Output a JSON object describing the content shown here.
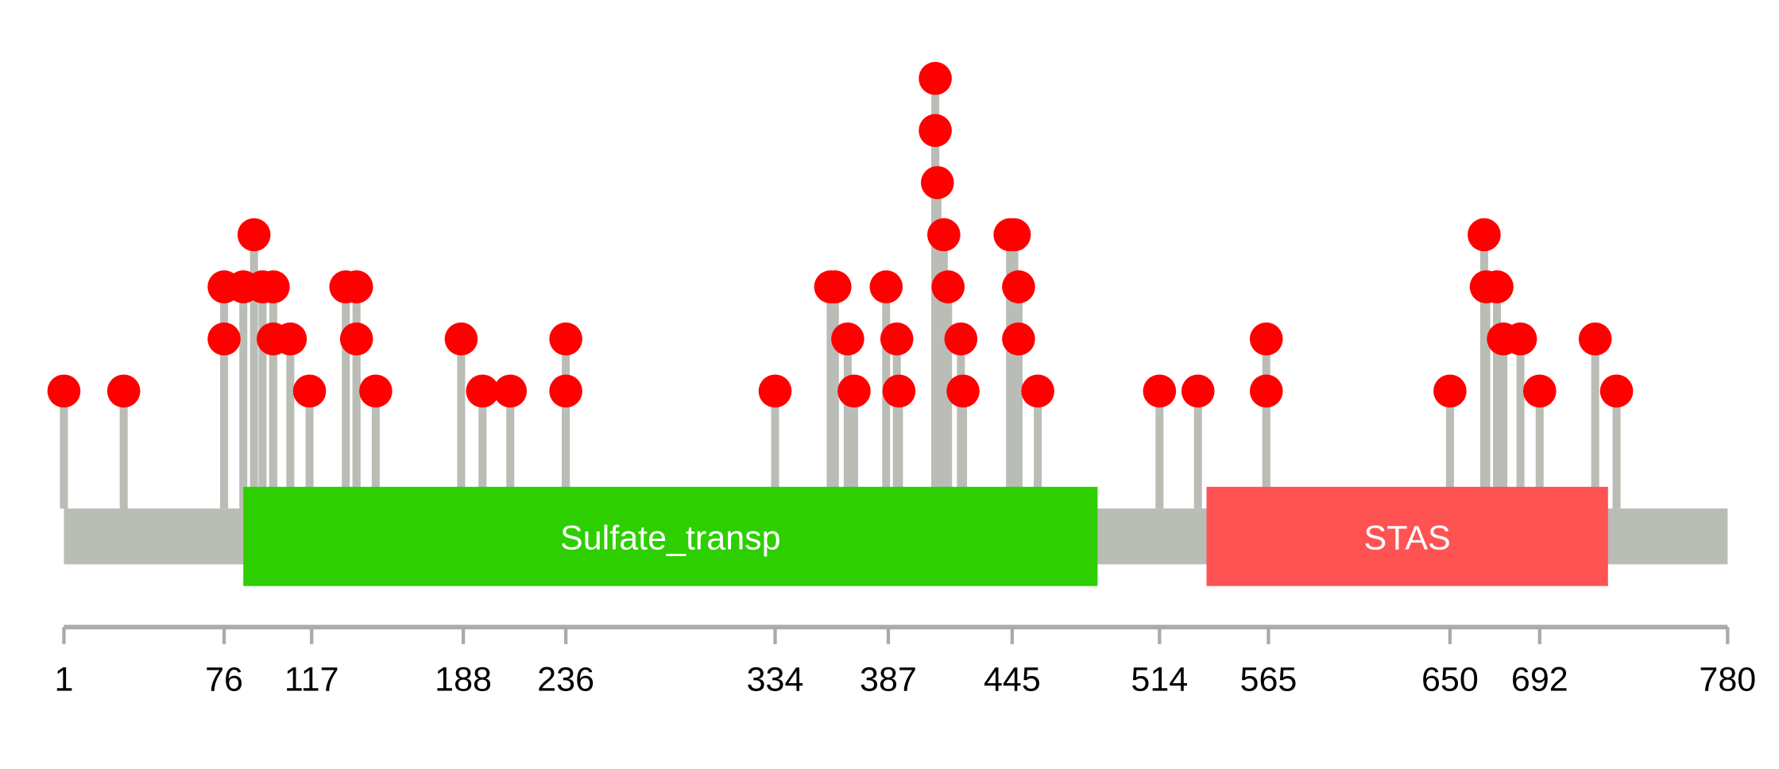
{
  "chart_data": {
    "type": "lollipop",
    "title": "",
    "xlabel": "",
    "ylabel": "",
    "protein_length": 780,
    "xlim": [
      1,
      780
    ],
    "max_count": 7,
    "colors": {
      "backbone": "#babdb6",
      "stem": "#babdb6",
      "marker": "#ff0000",
      "axis": "#aaaaaa"
    },
    "domains": [
      {
        "name": "Sulfate_transp",
        "start": 85,
        "end": 485,
        "color": "#2ecf00"
      },
      {
        "name": "STAS",
        "start": 536,
        "end": 724,
        "color": "#ff5353"
      }
    ],
    "tick_labels": [
      1,
      76,
      117,
      188,
      236,
      334,
      387,
      445,
      514,
      565,
      650,
      692,
      780
    ],
    "mutations": [
      {
        "position": 1,
        "count": 1
      },
      {
        "position": 29,
        "count": 1
      },
      {
        "position": 76,
        "count": 3
      },
      {
        "position": 76,
        "count": 2
      },
      {
        "position": 85,
        "count": 3
      },
      {
        "position": 90,
        "count": 4
      },
      {
        "position": 94,
        "count": 3
      },
      {
        "position": 99,
        "count": 3
      },
      {
        "position": 99,
        "count": 2
      },
      {
        "position": 107,
        "count": 2
      },
      {
        "position": 116,
        "count": 1
      },
      {
        "position": 133,
        "count": 3
      },
      {
        "position": 138,
        "count": 3
      },
      {
        "position": 138,
        "count": 2
      },
      {
        "position": 147,
        "count": 1
      },
      {
        "position": 187,
        "count": 2
      },
      {
        "position": 197,
        "count": 1
      },
      {
        "position": 210,
        "count": 1
      },
      {
        "position": 236,
        "count": 2
      },
      {
        "position": 236,
        "count": 1
      },
      {
        "position": 334,
        "count": 1
      },
      {
        "position": 360,
        "count": 3
      },
      {
        "position": 362,
        "count": 3
      },
      {
        "position": 368,
        "count": 2
      },
      {
        "position": 371,
        "count": 1
      },
      {
        "position": 386,
        "count": 3
      },
      {
        "position": 391,
        "count": 2
      },
      {
        "position": 392,
        "count": 1
      },
      {
        "position": 409,
        "count": 7
      },
      {
        "position": 409,
        "count": 6
      },
      {
        "position": 410,
        "count": 5
      },
      {
        "position": 413,
        "count": 4
      },
      {
        "position": 415,
        "count": 3
      },
      {
        "position": 421,
        "count": 2
      },
      {
        "position": 422,
        "count": 1
      },
      {
        "position": 444,
        "count": 4
      },
      {
        "position": 446,
        "count": 4
      },
      {
        "position": 448,
        "count": 3
      },
      {
        "position": 448,
        "count": 2
      },
      {
        "position": 457,
        "count": 1
      },
      {
        "position": 514,
        "count": 1
      },
      {
        "position": 532,
        "count": 1
      },
      {
        "position": 564,
        "count": 2
      },
      {
        "position": 564,
        "count": 1
      },
      {
        "position": 650,
        "count": 1
      },
      {
        "position": 666,
        "count": 4
      },
      {
        "position": 667,
        "count": 3
      },
      {
        "position": 672,
        "count": 3
      },
      {
        "position": 675,
        "count": 2
      },
      {
        "position": 683,
        "count": 2
      },
      {
        "position": 692,
        "count": 1
      },
      {
        "position": 718,
        "count": 2
      },
      {
        "position": 728,
        "count": 1
      }
    ]
  }
}
